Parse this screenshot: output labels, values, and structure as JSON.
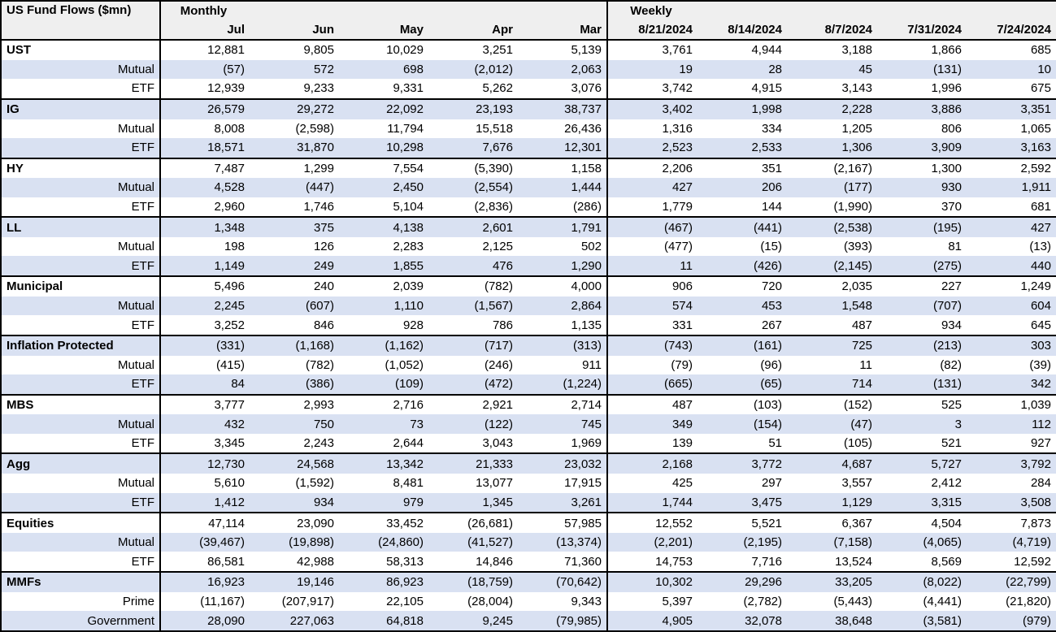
{
  "header": {
    "title": "US Fund Flows ($mn)",
    "monthly_label": "Monthly",
    "weekly_label": "Weekly",
    "monthly_columns": [
      "Jul",
      "Jun",
      "May",
      "Apr",
      "Mar"
    ],
    "weekly_columns": [
      "8/21/2024",
      "8/14/2024",
      "8/7/2024",
      "7/31/2024",
      "7/24/2024"
    ]
  },
  "colors": {
    "band": "#d9e1f2",
    "header_bg": "#efefef",
    "border": "#000000"
  },
  "groups": [
    {
      "name": "UST",
      "rows": [
        {
          "label": "UST",
          "monthly": [
            "12,881",
            "9,805",
            "10,029",
            "3,251",
            "5,139"
          ],
          "weekly": [
            "3,761",
            "4,944",
            "3,188",
            "1,866",
            "685"
          ]
        },
        {
          "label": "Mutual",
          "monthly": [
            "(57)",
            "572",
            "698",
            "(2,012)",
            "2,063"
          ],
          "weekly": [
            "19",
            "28",
            "45",
            "(131)",
            "10"
          ]
        },
        {
          "label": "ETF",
          "monthly": [
            "12,939",
            "9,233",
            "9,331",
            "5,262",
            "3,076"
          ],
          "weekly": [
            "3,742",
            "4,915",
            "3,143",
            "1,996",
            "675"
          ]
        }
      ]
    },
    {
      "name": "IG",
      "rows": [
        {
          "label": "IG",
          "monthly": [
            "26,579",
            "29,272",
            "22,092",
            "23,193",
            "38,737"
          ],
          "weekly": [
            "3,402",
            "1,998",
            "2,228",
            "3,886",
            "3,351"
          ]
        },
        {
          "label": "Mutual",
          "monthly": [
            "8,008",
            "(2,598)",
            "11,794",
            "15,518",
            "26,436"
          ],
          "weekly": [
            "1,316",
            "334",
            "1,205",
            "806",
            "1,065"
          ]
        },
        {
          "label": "ETF",
          "monthly": [
            "18,571",
            "31,870",
            "10,298",
            "7,676",
            "12,301"
          ],
          "weekly": [
            "2,523",
            "2,533",
            "1,306",
            "3,909",
            "3,163"
          ]
        }
      ]
    },
    {
      "name": "HY",
      "rows": [
        {
          "label": "HY",
          "monthly": [
            "7,487",
            "1,299",
            "7,554",
            "(5,390)",
            "1,158"
          ],
          "weekly": [
            "2,206",
            "351",
            "(2,167)",
            "1,300",
            "2,592"
          ]
        },
        {
          "label": "Mutual",
          "monthly": [
            "4,528",
            "(447)",
            "2,450",
            "(2,554)",
            "1,444"
          ],
          "weekly": [
            "427",
            "206",
            "(177)",
            "930",
            "1,911"
          ]
        },
        {
          "label": "ETF",
          "monthly": [
            "2,960",
            "1,746",
            "5,104",
            "(2,836)",
            "(286)"
          ],
          "weekly": [
            "1,779",
            "144",
            "(1,990)",
            "370",
            "681"
          ]
        }
      ]
    },
    {
      "name": "LL",
      "rows": [
        {
          "label": "LL",
          "monthly": [
            "1,348",
            "375",
            "4,138",
            "2,601",
            "1,791"
          ],
          "weekly": [
            "(467)",
            "(441)",
            "(2,538)",
            "(195)",
            "427"
          ]
        },
        {
          "label": "Mutual",
          "monthly": [
            "198",
            "126",
            "2,283",
            "2,125",
            "502"
          ],
          "weekly": [
            "(477)",
            "(15)",
            "(393)",
            "81",
            "(13)"
          ]
        },
        {
          "label": "ETF",
          "monthly": [
            "1,149",
            "249",
            "1,855",
            "476",
            "1,290"
          ],
          "weekly": [
            "11",
            "(426)",
            "(2,145)",
            "(275)",
            "440"
          ]
        }
      ]
    },
    {
      "name": "Municipal",
      "rows": [
        {
          "label": "Municipal",
          "monthly": [
            "5,496",
            "240",
            "2,039",
            "(782)",
            "4,000"
          ],
          "weekly": [
            "906",
            "720",
            "2,035",
            "227",
            "1,249"
          ]
        },
        {
          "label": "Mutual",
          "monthly": [
            "2,245",
            "(607)",
            "1,110",
            "(1,567)",
            "2,864"
          ],
          "weekly": [
            "574",
            "453",
            "1,548",
            "(707)",
            "604"
          ]
        },
        {
          "label": "ETF",
          "monthly": [
            "3,252",
            "846",
            "928",
            "786",
            "1,135"
          ],
          "weekly": [
            "331",
            "267",
            "487",
            "934",
            "645"
          ]
        }
      ]
    },
    {
      "name": "Inflation Protected",
      "rows": [
        {
          "label": "Inflation Protected",
          "monthly": [
            "(331)",
            "(1,168)",
            "(1,162)",
            "(717)",
            "(313)"
          ],
          "weekly": [
            "(743)",
            "(161)",
            "725",
            "(213)",
            "303"
          ]
        },
        {
          "label": "Mutual",
          "monthly": [
            "(415)",
            "(782)",
            "(1,052)",
            "(246)",
            "911"
          ],
          "weekly": [
            "(79)",
            "(96)",
            "11",
            "(82)",
            "(39)"
          ]
        },
        {
          "label": "ETF",
          "monthly": [
            "84",
            "(386)",
            "(109)",
            "(472)",
            "(1,224)"
          ],
          "weekly": [
            "(665)",
            "(65)",
            "714",
            "(131)",
            "342"
          ]
        }
      ]
    },
    {
      "name": "MBS",
      "rows": [
        {
          "label": "MBS",
          "monthly": [
            "3,777",
            "2,993",
            "2,716",
            "2,921",
            "2,714"
          ],
          "weekly": [
            "487",
            "(103)",
            "(152)",
            "525",
            "1,039"
          ]
        },
        {
          "label": "Mutual",
          "monthly": [
            "432",
            "750",
            "73",
            "(122)",
            "745"
          ],
          "weekly": [
            "349",
            "(154)",
            "(47)",
            "3",
            "112"
          ]
        },
        {
          "label": "ETF",
          "monthly": [
            "3,345",
            "2,243",
            "2,644",
            "3,043",
            "1,969"
          ],
          "weekly": [
            "139",
            "51",
            "(105)",
            "521",
            "927"
          ]
        }
      ]
    },
    {
      "name": "Agg",
      "rows": [
        {
          "label": "Agg",
          "monthly": [
            "12,730",
            "24,568",
            "13,342",
            "21,333",
            "23,032"
          ],
          "weekly": [
            "2,168",
            "3,772",
            "4,687",
            "5,727",
            "3,792"
          ]
        },
        {
          "label": "Mutual",
          "monthly": [
            "5,610",
            "(1,592)",
            "8,481",
            "13,077",
            "17,915"
          ],
          "weekly": [
            "425",
            "297",
            "3,557",
            "2,412",
            "284"
          ]
        },
        {
          "label": "ETF",
          "monthly": [
            "1,412",
            "934",
            "979",
            "1,345",
            "3,261"
          ],
          "weekly": [
            "1,744",
            "3,475",
            "1,129",
            "3,315",
            "3,508"
          ]
        }
      ]
    },
    {
      "name": "Equities",
      "rows": [
        {
          "label": "Equities",
          "monthly": [
            "47,114",
            "23,090",
            "33,452",
            "(26,681)",
            "57,985"
          ],
          "weekly": [
            "12,552",
            "5,521",
            "6,367",
            "4,504",
            "7,873"
          ]
        },
        {
          "label": "Mutual",
          "monthly": [
            "(39,467)",
            "(19,898)",
            "(24,860)",
            "(41,527)",
            "(13,374)"
          ],
          "weekly": [
            "(2,201)",
            "(2,195)",
            "(7,158)",
            "(4,065)",
            "(4,719)"
          ]
        },
        {
          "label": "ETF",
          "monthly": [
            "86,581",
            "42,988",
            "58,313",
            "14,846",
            "71,360"
          ],
          "weekly": [
            "14,753",
            "7,716",
            "13,524",
            "8,569",
            "12,592"
          ]
        }
      ]
    },
    {
      "name": "MMFs",
      "rows": [
        {
          "label": "MMFs",
          "monthly": [
            "16,923",
            "19,146",
            "86,923",
            "(18,759)",
            "(70,642)"
          ],
          "weekly": [
            "10,302",
            "29,296",
            "33,205",
            "(8,022)",
            "(22,799)"
          ]
        },
        {
          "label": "Prime",
          "monthly": [
            "(11,167)",
            "(207,917)",
            "22,105",
            "(28,004)",
            "9,343"
          ],
          "weekly": [
            "5,397",
            "(2,782)",
            "(5,443)",
            "(4,441)",
            "(21,820)"
          ]
        },
        {
          "label": "Government",
          "monthly": [
            "28,090",
            "227,063",
            "64,818",
            "9,245",
            "(79,985)"
          ],
          "weekly": [
            "4,905",
            "32,078",
            "38,648",
            "(3,581)",
            "(979)"
          ]
        }
      ]
    }
  ]
}
